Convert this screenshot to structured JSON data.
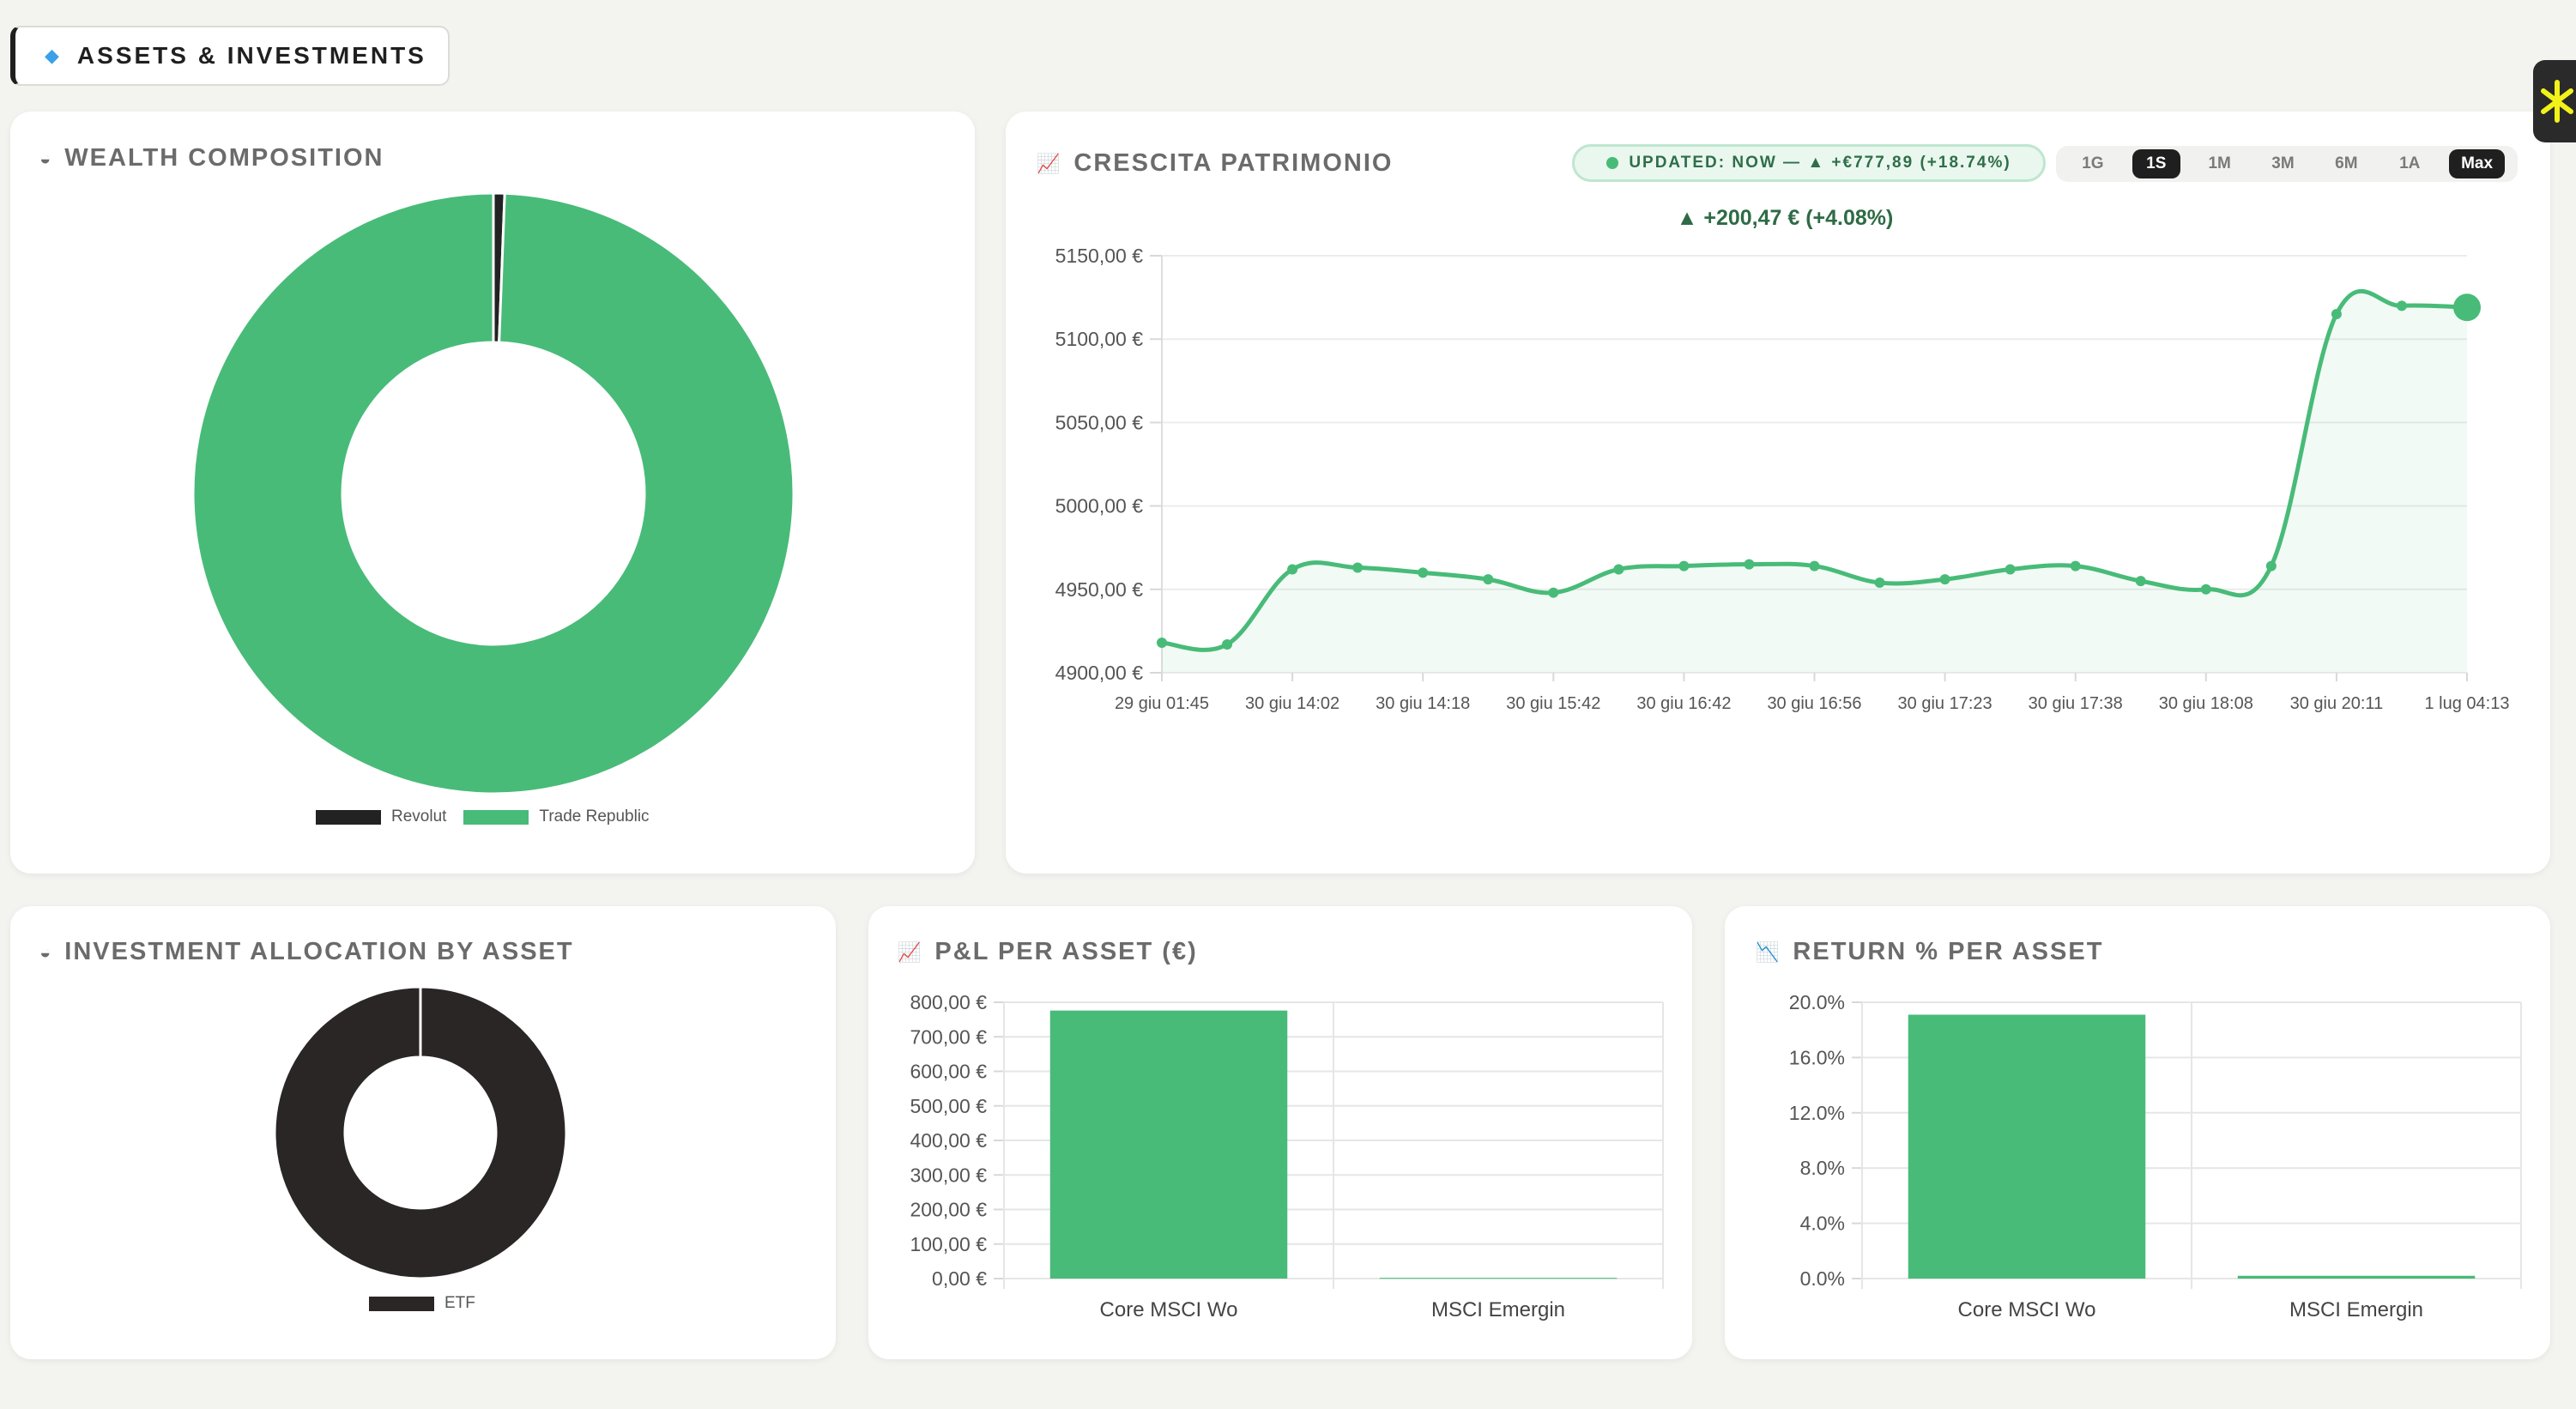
{
  "section": {
    "icon": "gem-icon",
    "title": "ASSETS & INVESTMENTS"
  },
  "colors": {
    "green": "#48bb78",
    "dark": "#2a2626",
    "accent": "#f2f21a"
  },
  "wealth": {
    "icon": "pie-icon",
    "title": "WEALTH COMPOSITION",
    "chart_data": {
      "type": "pie",
      "categories": [
        "Revolut",
        "Trade Republic"
      ],
      "values": [
        0.6,
        99.4
      ],
      "colors": [
        "#222222",
        "#48bb78"
      ],
      "legend": "bottom"
    }
  },
  "growth": {
    "icon": "chart-up-icon",
    "title": "CRESCITA PATRIMONIO",
    "updated": "UPDATED: NOW — ▲ +€777,89 (+18.74%)",
    "delta": "▲ +200,47 € (+4.08%)",
    "ranges": [
      {
        "label": "1G",
        "active": false
      },
      {
        "label": "1S",
        "active": true
      },
      {
        "label": "1M",
        "active": false
      },
      {
        "label": "3M",
        "active": false
      },
      {
        "label": "6M",
        "active": false
      },
      {
        "label": "1A",
        "active": false
      },
      {
        "label": "Max",
        "active": true
      }
    ],
    "chart_data": {
      "type": "area",
      "ylim": [
        4900,
        5150
      ],
      "y_ticks": [
        "5150,00 €",
        "5100,00 €",
        "5050,00 €",
        "5000,00 €",
        "4950,00 €",
        "4900,00 €"
      ],
      "x_tick_labels": [
        "29 giu 01:45",
        "30 giu 14:02",
        "30 giu 14:18",
        "30 giu 15:42",
        "30 giu 16:42",
        "30 giu 16:56",
        "30 giu 17:23",
        "30 giu 17:38",
        "30 giu 18:08",
        "30 giu 20:11",
        "1 lug 04:13"
      ],
      "values": [
        4918,
        4917,
        4962,
        4963,
        4960,
        4956,
        4948,
        4962,
        4964,
        4965,
        4964,
        4954,
        4956,
        4962,
        4964,
        4955,
        4950,
        4964,
        5115,
        5120,
        5119
      ],
      "color": "#48bb78",
      "grid": true
    }
  },
  "allocation": {
    "icon": "pie-icon",
    "title": "INVESTMENT ALLOCATION BY ASSET",
    "chart_data": {
      "type": "pie",
      "categories": [
        "ETF"
      ],
      "values": [
        100
      ],
      "colors": [
        "#2a2626"
      ],
      "legend": "bottom"
    }
  },
  "pnl": {
    "icon": "chart-up-icon",
    "title": "P&L PER ASSET (€)",
    "chart_data": {
      "type": "bar",
      "categories": [
        "Core MSCI Wo",
        "MSCI Emergin"
      ],
      "values": [
        776,
        2
      ],
      "ylim": [
        0,
        800
      ],
      "y_ticks": [
        "800,00 €",
        "700,00 €",
        "600,00 €",
        "500,00 €",
        "400,00 €",
        "300,00 €",
        "200,00 €",
        "100,00 €",
        "0,00 €"
      ],
      "color": "#48bb78",
      "grid": true
    }
  },
  "returns": {
    "icon": "chart-down-icon",
    "title": "RETURN % PER ASSET",
    "chart_data": {
      "type": "bar",
      "categories": [
        "Core MSCI Wo",
        "MSCI Emergin"
      ],
      "values": [
        19.1,
        0.2
      ],
      "ylim": [
        0,
        20
      ],
      "y_ticks": [
        "20.0%",
        "16.0%",
        "12.0%",
        "8.0%",
        "4.0%",
        "0.0%"
      ],
      "color": "#48bb78",
      "grid": true
    }
  }
}
